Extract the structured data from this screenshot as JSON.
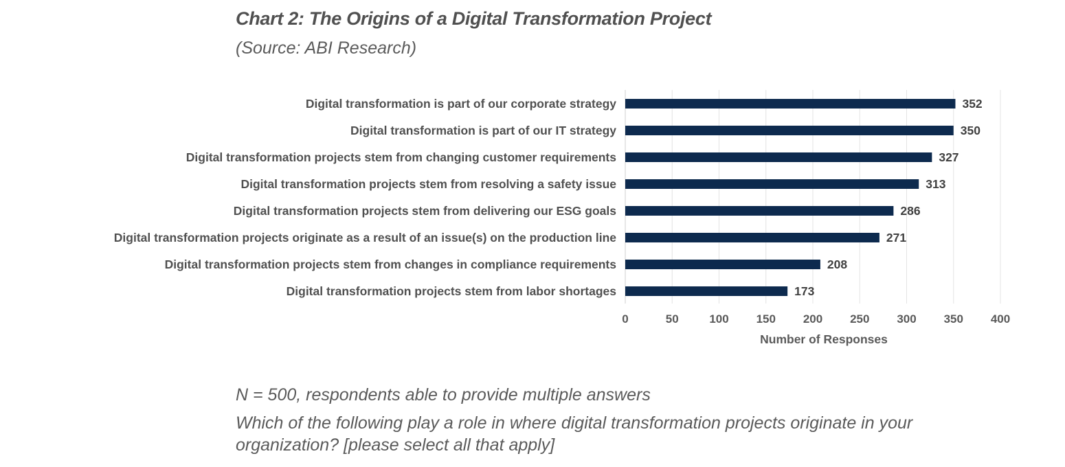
{
  "title": "Chart 2: The Origins of a Digital Transformation Project",
  "source": "(Source: ABI Research)",
  "notes": {
    "sample": "N = 500, respondents able to provide multiple answers",
    "question": "Which of the following play a role in where digital transformation projects originate in your organization? [please select all that apply]"
  },
  "chart_data": {
    "type": "bar",
    "orientation": "horizontal",
    "categories": [
      "Digital transformation is part of our corporate strategy",
      "Digital transformation is part of our IT strategy",
      "Digital transformation projects stem from changing customer requirements",
      "Digital transformation projects stem from resolving a safety issue",
      "Digital transformation projects stem from delivering our ESG goals",
      "Digital transformation projects originate as a result of an issue(s) on the production line",
      "Digital transformation projects stem from changes in compliance requirements",
      "Digital transformation projects stem from labor shortages"
    ],
    "values": [
      352,
      350,
      327,
      313,
      286,
      271,
      208,
      173
    ],
    "xlabel": "Number of Responses",
    "ylabel": "",
    "xlim": [
      0,
      400
    ],
    "xticks": [
      0,
      50,
      100,
      150,
      200,
      250,
      300,
      350,
      400
    ],
    "grid": true,
    "data_labels": true,
    "legend": "none",
    "bar_color": "#0d2a4e"
  }
}
